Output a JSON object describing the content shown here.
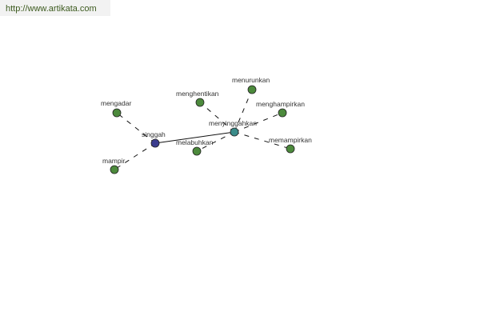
{
  "watermark": "http://www.artikata.com",
  "colors": {
    "root": "#3b3d8f",
    "hub": "#3a8c8a",
    "leaf": "#4c8a3c"
  },
  "nodes": [
    {
      "id": "singgah",
      "label": "singgah",
      "kind": "root"
    },
    {
      "id": "menyinggahkan",
      "label": "menyinggahkan",
      "kind": "hub"
    },
    {
      "id": "mengadar",
      "label": "mengadar",
      "kind": "leaf"
    },
    {
      "id": "mampir",
      "label": "mampir",
      "kind": "leaf"
    },
    {
      "id": "menghentikan",
      "label": "menghentikan",
      "kind": "leaf"
    },
    {
      "id": "menurunkan",
      "label": "menurunkan",
      "kind": "leaf"
    },
    {
      "id": "menghampirkan",
      "label": "menghampirkan",
      "kind": "leaf"
    },
    {
      "id": "memampirkan",
      "label": "memampirkan",
      "kind": "leaf"
    },
    {
      "id": "melabuhkan",
      "label": "melabuhkan",
      "kind": "leaf"
    }
  ],
  "edges": [
    {
      "from": "singgah",
      "to": "menyinggahkan",
      "style": "solid"
    },
    {
      "from": "singgah",
      "to": "mengadar",
      "style": "dashed"
    },
    {
      "from": "singgah",
      "to": "mampir",
      "style": "dashed"
    },
    {
      "from": "menyinggahkan",
      "to": "menghentikan",
      "style": "dashed"
    },
    {
      "from": "menyinggahkan",
      "to": "menurunkan",
      "style": "dashed"
    },
    {
      "from": "menyinggahkan",
      "to": "menghampirkan",
      "style": "dashed"
    },
    {
      "from": "menyinggahkan",
      "to": "memampirkan",
      "style": "dashed"
    },
    {
      "from": "menyinggahkan",
      "to": "melabuhkan",
      "style": "dashed"
    }
  ]
}
